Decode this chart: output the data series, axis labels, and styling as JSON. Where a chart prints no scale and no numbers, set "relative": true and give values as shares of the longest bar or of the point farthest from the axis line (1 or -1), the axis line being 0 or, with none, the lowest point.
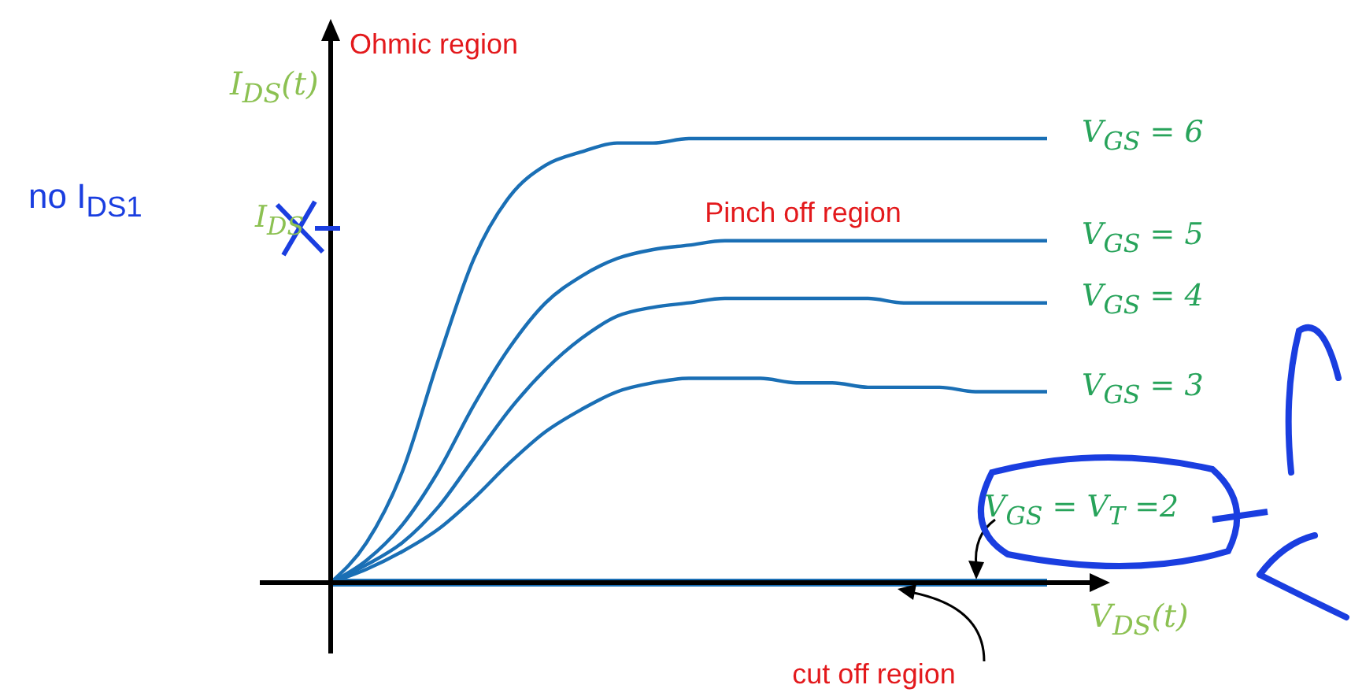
{
  "chart_data": {
    "type": "line",
    "relative": true,
    "xlabel": "V$_{DS}$(t)",
    "ylabel": "I$_{DS}$(t)",
    "categories": [
      null,
      null,
      null,
      null,
      null,
      null,
      null,
      null,
      null,
      null,
      null,
      null,
      null,
      null,
      null,
      null,
      null,
      null,
      null,
      null,
      null
    ],
    "series": [
      {
        "name": "V$_{GS}$ = 6",
        "color": "#1a6fb5",
        "values": [
          0,
          0.09,
          0.25,
          0.5,
          0.73,
          0.87,
          0.94,
          0.97,
          0.99,
          0.99,
          1,
          1,
          1,
          1,
          1,
          1,
          1,
          1,
          1,
          1,
          1
        ]
      },
      {
        "name": "V$_{GS}$ = 5",
        "color": "#1a6fb5",
        "values": [
          0,
          0.05,
          0.13,
          0.25,
          0.4,
          0.53,
          0.63,
          0.69,
          0.73,
          0.75,
          0.76,
          0.77,
          0.77,
          0.77,
          0.77,
          0.77,
          0.77,
          0.77,
          0.77,
          0.77,
          0.77
        ]
      },
      {
        "name": "V$_{GS}$ = 4",
        "color": "#1a6fb5",
        "values": [
          0,
          0.04,
          0.09,
          0.17,
          0.28,
          0.39,
          0.48,
          0.55,
          0.6,
          0.62,
          0.63,
          0.64,
          0.64,
          0.64,
          0.64,
          0.64,
          0.63,
          0.63,
          0.63,
          0.63,
          0.63
        ]
      },
      {
        "name": "V$_{GS}$ = 3",
        "color": "#1a6fb5",
        "values": [
          0,
          0.03,
          0.07,
          0.12,
          0.19,
          0.27,
          0.34,
          0.39,
          0.43,
          0.45,
          0.46,
          0.46,
          0.46,
          0.45,
          0.45,
          0.44,
          0.44,
          0.44,
          0.43,
          0.43,
          0.43
        ]
      },
      {
        "name": "V$_{GS}$ = V$_{T}$ =2",
        "color": "#1a6fb5",
        "values": [
          0,
          0,
          0,
          0,
          0,
          0,
          0,
          0,
          0,
          0,
          0,
          0,
          0,
          0,
          0,
          0,
          0,
          0,
          0,
          0,
          0
        ]
      }
    ],
    "annotations": [
      "Ohmic region",
      "Pinch off region",
      "cut off region",
      "I$_{DS}$",
      "no I$_{DS1}$"
    ],
    "legend": false,
    "grid": false,
    "marker": "none",
    "line_style": "solid",
    "tick_labels": false
  }
}
